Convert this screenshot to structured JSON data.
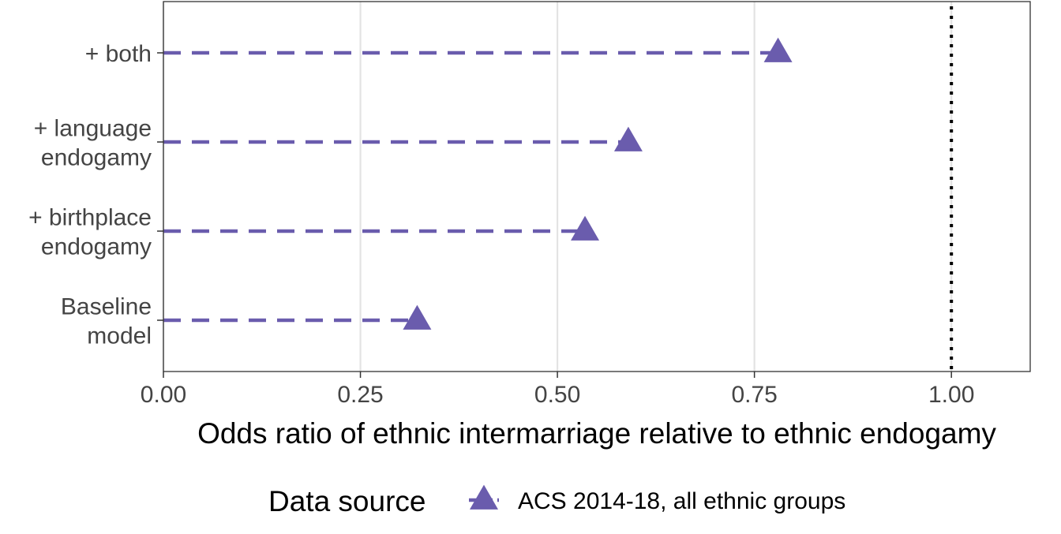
{
  "chart_data": {
    "type": "scatter",
    "orientation": "horizontal",
    "categories": [
      [
        "+ both"
      ],
      [
        "+ language",
        "endogamy"
      ],
      [
        "+ birthplace",
        "endogamy"
      ],
      [
        "Baseline",
        "model"
      ]
    ],
    "series": [
      {
        "name": "ACS 2014-18, all ethnic groups",
        "values": [
          0.78,
          0.59,
          0.535,
          0.322
        ],
        "color": "#6a5cad",
        "marker": "triangle",
        "line_style": "dashed-from-zero"
      }
    ],
    "xlabel": "Odds ratio of ethnic intermarriage relative to ethnic endogamy",
    "ylabel": "",
    "xlim": [
      0,
      1.1
    ],
    "xticks": [
      0.0,
      0.25,
      0.5,
      0.75,
      1.0
    ],
    "xtick_labels": [
      "0.00",
      "0.25",
      "0.50",
      "0.75",
      "1.00"
    ],
    "reference_line": {
      "x": 1.0,
      "style": "dotted",
      "color": "#000000"
    },
    "grid": "vertical-major",
    "legend": {
      "title": "Data source",
      "placement": "bottom"
    }
  }
}
